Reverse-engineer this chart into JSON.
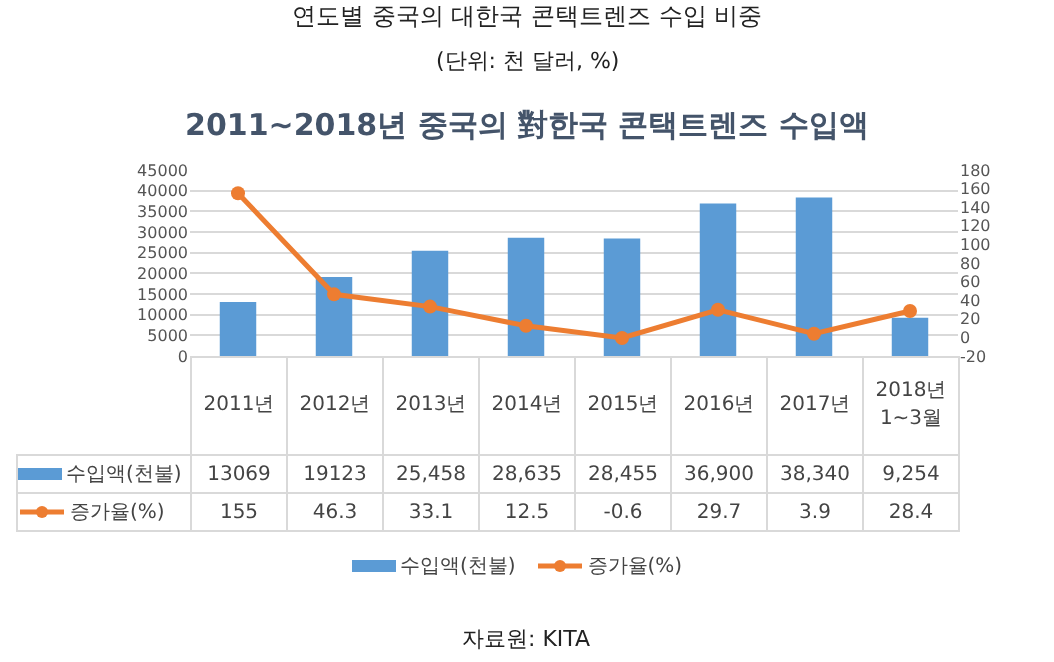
{
  "chart_data": {
    "type": "bar",
    "title": "2011~2018년 중국의 對한국 콘택트렌즈 수입액",
    "annotations": [
      "연도별 중국의 대한국 콘택트렌즈 수입 비중",
      "(단위: 천 달러, %)",
      "자료원: KITA"
    ],
    "categories": [
      "2011년",
      "2012년",
      "2013년",
      "2014년",
      "2015년",
      "2016년",
      "2017년",
      "2018년 1~3월"
    ],
    "series": [
      {
        "name": "수입액(천불)",
        "color": "#5b9bd5",
        "values": [
          13069,
          19123,
          25458,
          28635,
          28455,
          36900,
          38340,
          9254
        ],
        "value_labels": [
          "13069",
          "19123",
          "25,458",
          "28,635",
          "28,455",
          "36,900",
          "38,340",
          "9,254"
        ]
      },
      {
        "name": "증가율(%)",
        "type": "line",
        "axis": "y2",
        "color": "#ed7d31",
        "marker": "circle",
        "values": [
          155,
          46.3,
          33.1,
          12.5,
          -0.6,
          29.7,
          3.9,
          28.4
        ],
        "value_labels": [
          "155",
          "46.3",
          "33.1",
          "12.5",
          "-0.6",
          "29.7",
          "3.9",
          "28.4"
        ]
      }
    ],
    "ylim": [
      0,
      45000
    ],
    "yticks": [
      0,
      5000,
      10000,
      15000,
      20000,
      25000,
      30000,
      35000,
      40000,
      45000
    ],
    "y2lim": [
      -20,
      180
    ],
    "y2ticks": [
      -20,
      0,
      20,
      40,
      60,
      80,
      100,
      120,
      140,
      160,
      180
    ],
    "grid": "y",
    "legend": "bottom"
  }
}
